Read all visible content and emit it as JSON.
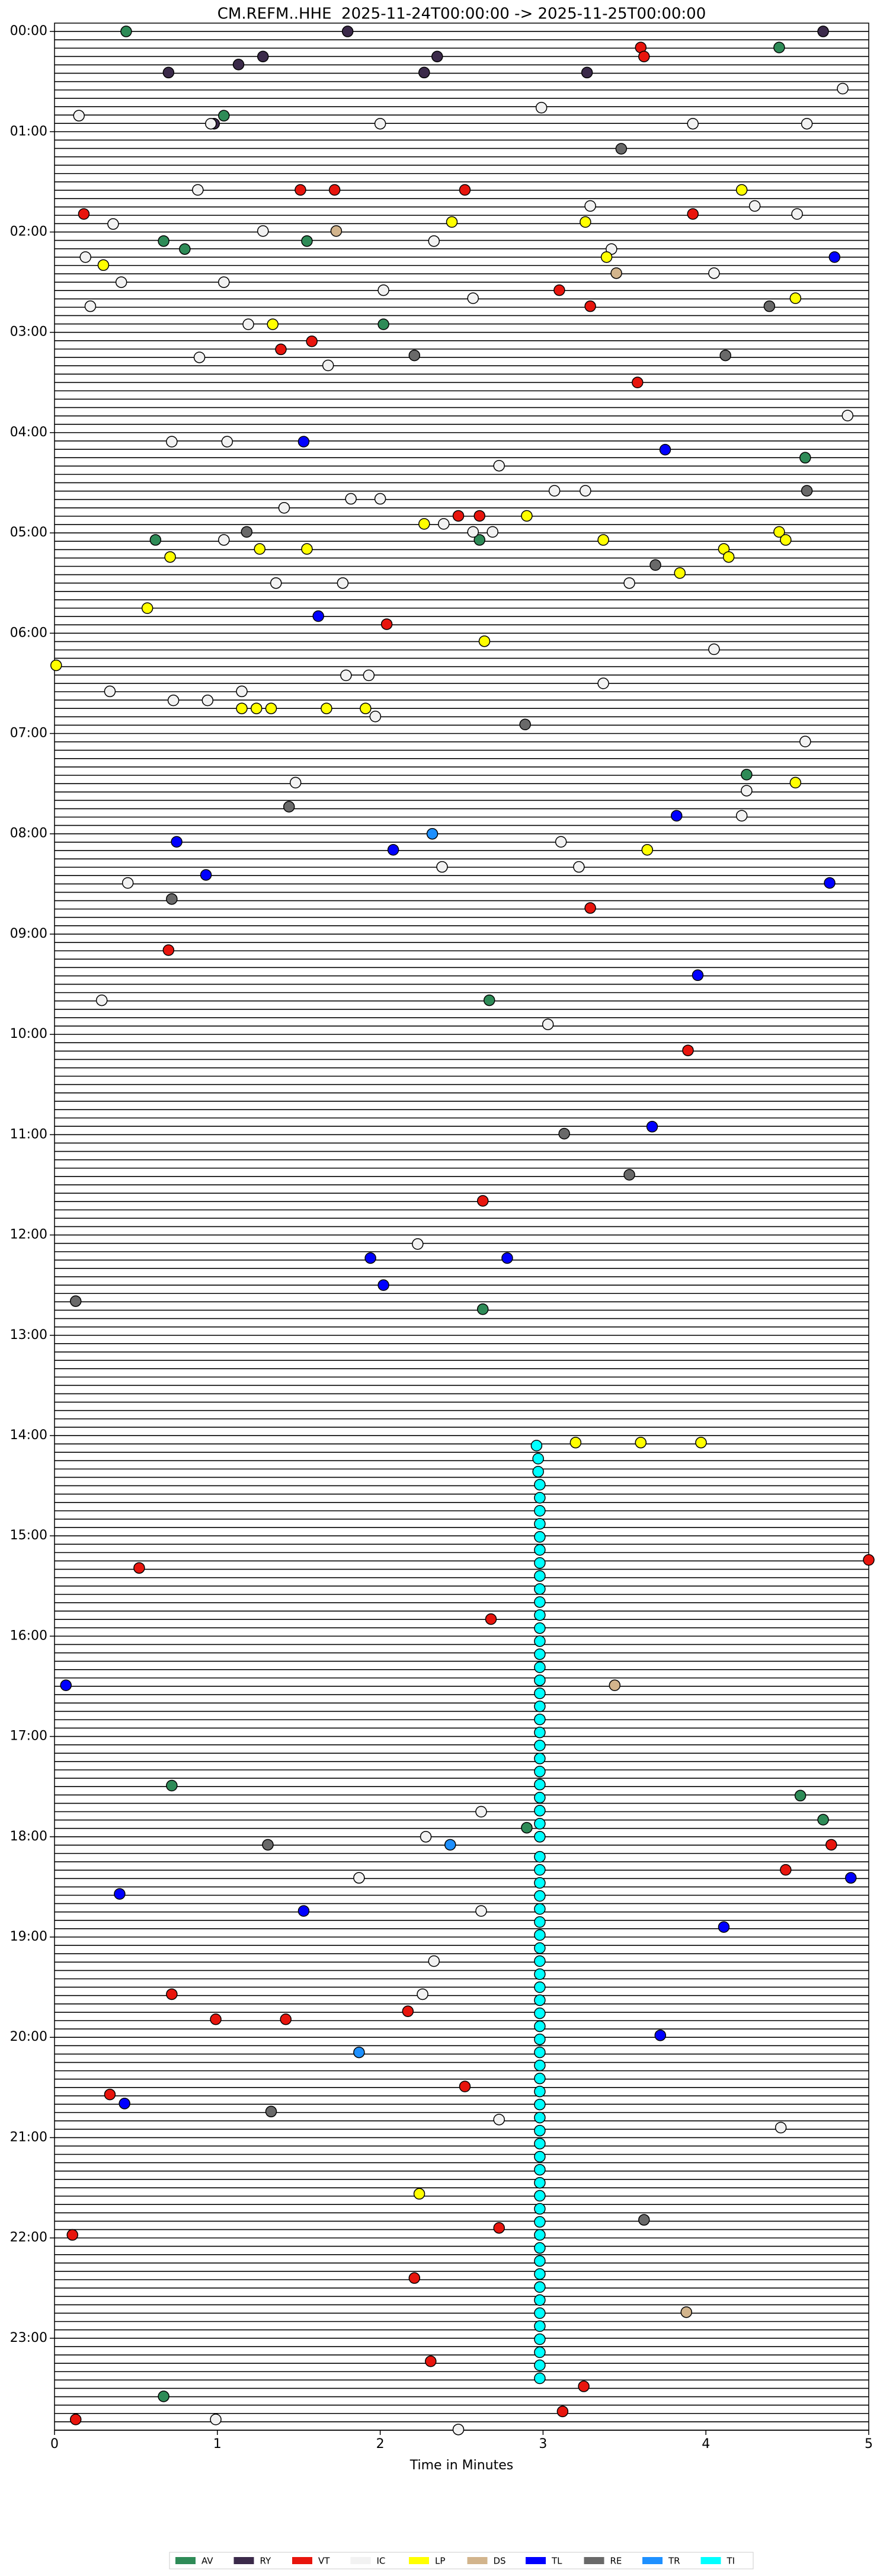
{
  "chart_data": {
    "type": "helicorder",
    "title": "CM.REFM..HHE  2025-11-24T00:00:00 -> 2025-11-25T00:00:00",
    "xlabel": "Time in Minutes",
    "xlim": [
      0,
      5
    ],
    "xticks": [
      0,
      1,
      2,
      3,
      4,
      5
    ],
    "ylim": [
      -0.083,
      23.917
    ],
    "yinvert": true,
    "yticks": [
      {
        "value": 0,
        "label": "00:00"
      },
      {
        "value": 1,
        "label": "01:00"
      },
      {
        "value": 2,
        "label": "02:00"
      },
      {
        "value": 3,
        "label": "03:00"
      },
      {
        "value": 4,
        "label": "04:00"
      },
      {
        "value": 5,
        "label": "05:00"
      },
      {
        "value": 6,
        "label": "06:00"
      },
      {
        "value": 7,
        "label": "07:00"
      },
      {
        "value": 8,
        "label": "08:00"
      },
      {
        "value": 9,
        "label": "09:00"
      },
      {
        "value": 10,
        "label": "10:00"
      },
      {
        "value": 11,
        "label": "11:00"
      },
      {
        "value": 12,
        "label": "12:00"
      },
      {
        "value": 13,
        "label": "13:00"
      },
      {
        "value": 14,
        "label": "14:00"
      },
      {
        "value": 15,
        "label": "15:00"
      },
      {
        "value": 16,
        "label": "16:00"
      },
      {
        "value": 17,
        "label": "17:00"
      },
      {
        "value": 18,
        "label": "18:00"
      },
      {
        "value": 19,
        "label": "19:00"
      },
      {
        "value": 20,
        "label": "20:00"
      },
      {
        "value": 21,
        "label": "21:00"
      },
      {
        "value": 22,
        "label": "22:00"
      },
      {
        "value": 23,
        "label": "23:00"
      }
    ],
    "series": [
      {
        "name": "AV",
        "color": "#2e8b57",
        "x": [
          0.44,
          4.45,
          1.04,
          1.55,
          0.67,
          0.8,
          2.02,
          0.62,
          2.61,
          4.61,
          4.25,
          2.67,
          2.63,
          0.72,
          4.58,
          4.72,
          2.9,
          0.67
        ],
        "y": [
          0,
          0.16,
          0.84,
          2.09,
          2.09,
          2.17,
          2.92,
          5.07,
          5.07,
          4.25,
          7.41,
          9.66,
          12.74,
          17.49,
          17.59,
          17.83,
          17.91,
          23.58
        ]
      },
      {
        "name": "RY",
        "color": "#3b2a4a",
        "x": [
          1.8,
          4.72,
          2.35,
          1.28,
          1.13,
          0.7,
          2.27,
          3.27,
          0.98
        ],
        "y": [
          0,
          0,
          0.25,
          0.25,
          0.33,
          0.41,
          0.41,
          0.41,
          0.92
        ]
      },
      {
        "name": "VT",
        "color": "#e8150d",
        "x": [
          3.6,
          3.62,
          1.51,
          1.72,
          2.52,
          0.18,
          3.92,
          1.58,
          1.39,
          3.1,
          3.29,
          2.48,
          2.61,
          2.04,
          3.58,
          3.29,
          0.7,
          3.89,
          2.63,
          5.0,
          0.52,
          2.68,
          0.72,
          0.99,
          1.42,
          2.17,
          0.34,
          2.52,
          0.11,
          2.73,
          2.21,
          2.31,
          3.25,
          3.12,
          0.13,
          4.77,
          4.49
        ],
        "y": [
          0.16,
          0.25,
          1.58,
          1.58,
          1.58,
          1.82,
          1.82,
          3.09,
          3.17,
          2.58,
          2.74,
          4.83,
          4.83,
          5.91,
          3.5,
          8.74,
          9.16,
          10.16,
          11.66,
          15.24,
          15.32,
          15.83,
          19.57,
          19.82,
          19.82,
          19.74,
          20.57,
          20.49,
          21.97,
          21.9,
          22.4,
          23.23,
          23.48,
          23.73,
          23.81,
          18.08,
          18.33
        ]
      },
      {
        "name": "IC",
        "color": "#f2f2f2",
        "x": [
          0.15,
          0.96,
          2.0,
          2.99,
          3.92,
          4.62,
          4.84,
          0.88,
          0.36,
          1.28,
          3.29,
          4.3,
          4.56,
          0.19,
          2.33,
          3.42,
          4.05,
          0.41,
          1.04,
          2.02,
          2.57,
          0.22,
          1.19,
          0.89,
          1.68,
          4.87,
          0.72,
          1.06,
          2.73,
          3.07,
          3.26,
          1.82,
          2.0,
          1.41,
          2.39,
          2.69,
          2.57,
          1.04,
          3.53,
          1.36,
          1.77,
          4.05,
          1.79,
          1.93,
          0.34,
          3.37,
          0.73,
          0.94,
          1.15,
          1.97,
          4.61,
          1.48,
          4.25,
          4.22,
          3.11,
          0.45,
          2.38,
          3.22,
          0.29,
          3.03,
          2.23,
          1.87,
          2.28,
          2.62,
          2.33,
          2.26,
          2.73,
          4.46,
          0.99,
          2.48,
          2.62
        ],
        "y": [
          0.84,
          0.92,
          0.92,
          0.76,
          0.92,
          0.92,
          0.57,
          1.58,
          1.92,
          1.99,
          1.74,
          1.74,
          1.82,
          2.25,
          2.09,
          2.17,
          2.41,
          2.5,
          2.5,
          2.58,
          2.66,
          2.74,
          2.92,
          3.25,
          3.33,
          3.83,
          4.09,
          4.09,
          4.33,
          4.58,
          4.58,
          4.66,
          4.66,
          4.75,
          4.91,
          4.99,
          4.99,
          5.07,
          5.5,
          5.5,
          5.5,
          6.16,
          6.42,
          6.42,
          6.58,
          6.5,
          6.67,
          6.67,
          6.58,
          6.83,
          7.08,
          7.49,
          7.57,
          7.82,
          8.08,
          8.49,
          8.33,
          8.33,
          9.66,
          9.9,
          12.09,
          18.41,
          18.0,
          18.74,
          19.24,
          19.57,
          20.82,
          20.9,
          23.81,
          23.91,
          17.75
        ]
      },
      {
        "name": "LP",
        "color": "#ffff00",
        "x": [
          4.22,
          2.44,
          3.26,
          3.39,
          0.3,
          4.55,
          1.34,
          2.27,
          2.9,
          3.37,
          1.26,
          1.55,
          4.11,
          0.71,
          4.14,
          3.84,
          4.45,
          4.49,
          0.57,
          0.01,
          2.64,
          1.15,
          1.24,
          1.33,
          1.67,
          1.91,
          4.55,
          3.64,
          3.2,
          3.6,
          3.97,
          2.24
        ],
        "y": [
          1.58,
          1.9,
          1.9,
          2.25,
          2.33,
          2.66,
          2.92,
          4.91,
          4.83,
          5.07,
          5.16,
          5.16,
          5.16,
          5.24,
          5.24,
          5.4,
          4.99,
          5.07,
          5.75,
          6.32,
          6.08,
          6.75,
          6.75,
          6.75,
          6.75,
          6.75,
          7.49,
          8.16,
          14.07,
          14.07,
          14.07,
          21.56
        ]
      },
      {
        "name": "DS",
        "color": "#d2b48c",
        "x": [
          1.73,
          3.45,
          3.44,
          3.88
        ],
        "y": [
          1.99,
          2.41,
          16.49,
          22.74
        ]
      },
      {
        "name": "TL",
        "color": "#0000ff",
        "x": [
          4.79,
          1.53,
          3.75,
          1.62,
          3.82,
          0.75,
          2.08,
          0.93,
          4.76,
          3.95,
          3.67,
          1.94,
          2.78,
          2.02,
          0.07,
          0.4,
          1.53,
          4.11,
          4.89,
          3.72,
          0.43
        ],
        "y": [
          2.25,
          4.09,
          4.17,
          5.83,
          7.82,
          8.08,
          8.16,
          8.41,
          8.49,
          9.41,
          10.92,
          12.23,
          12.23,
          12.5,
          16.49,
          18.57,
          18.74,
          18.9,
          18.41,
          19.98,
          20.66
        ]
      },
      {
        "name": "RE",
        "color": "#696969",
        "x": [
          3.48,
          2.21,
          4.12,
          4.62,
          1.18,
          3.69,
          4.39,
          2.89,
          1.44,
          0.72,
          3.53,
          3.13,
          0.13,
          1.31,
          1.33,
          3.62
        ],
        "y": [
          1.17,
          3.23,
          3.23,
          4.58,
          4.99,
          5.32,
          2.74,
          6.91,
          7.73,
          8.65,
          11.4,
          10.99,
          12.66,
          18.08,
          20.74,
          21.82
        ]
      },
      {
        "name": "TR",
        "color": "#1e90ff",
        "x": [
          2.32,
          2.43,
          1.87
        ],
        "y": [
          8.0,
          18.08,
          20.15
        ]
      },
      {
        "name": "TI",
        "color": "#00ffff",
        "x": [
          2.96,
          2.97,
          2.97,
          2.98,
          2.98,
          2.98,
          2.98,
          2.98,
          2.98,
          2.98,
          2.98,
          2.98,
          2.98,
          2.98,
          2.98,
          2.98,
          2.98,
          2.98,
          2.98,
          2.98,
          2.98,
          2.98,
          2.98,
          2.98,
          2.98,
          2.98,
          2.98,
          2.98,
          2.98,
          2.98,
          2.98,
          2.98,
          2.98,
          2.98,
          2.98,
          2.98,
          2.98,
          2.98,
          2.98,
          2.98,
          2.98,
          2.98,
          2.98,
          2.98,
          2.98,
          2.98,
          2.98,
          2.98,
          2.98,
          2.98,
          2.98,
          2.98,
          2.98,
          2.98,
          2.98,
          2.98,
          2.98,
          2.98,
          2.98,
          2.98,
          2.98,
          2.98,
          2.98,
          2.98,
          2.98,
          2.98,
          2.98,
          2.98,
          2.98,
          2.98,
          2.98,
          2.98
        ],
        "y": [
          14.1,
          14.23,
          14.36,
          14.49,
          14.62,
          14.75,
          14.88,
          15.01,
          15.14,
          15.27,
          15.4,
          15.53,
          15.66,
          15.79,
          15.92,
          16.05,
          16.18,
          16.31,
          16.44,
          16.57,
          16.7,
          16.83,
          16.96,
          17.09,
          17.22,
          17.35,
          17.48,
          17.61,
          17.74,
          17.87,
          18.0,
          18.2,
          18.33,
          18.46,
          18.59,
          18.72,
          18.85,
          18.98,
          19.11,
          19.24,
          19.37,
          19.5,
          19.63,
          19.76,
          19.89,
          20.02,
          20.15,
          20.28,
          20.41,
          20.54,
          20.67,
          20.8,
          20.93,
          21.06,
          21.19,
          21.32,
          21.45,
          21.58,
          21.71,
          21.84,
          21.97,
          22.1,
          22.23,
          22.36,
          22.49,
          22.62,
          22.75,
          22.88,
          23.01,
          23.14,
          23.27,
          23.4
        ]
      }
    ]
  }
}
